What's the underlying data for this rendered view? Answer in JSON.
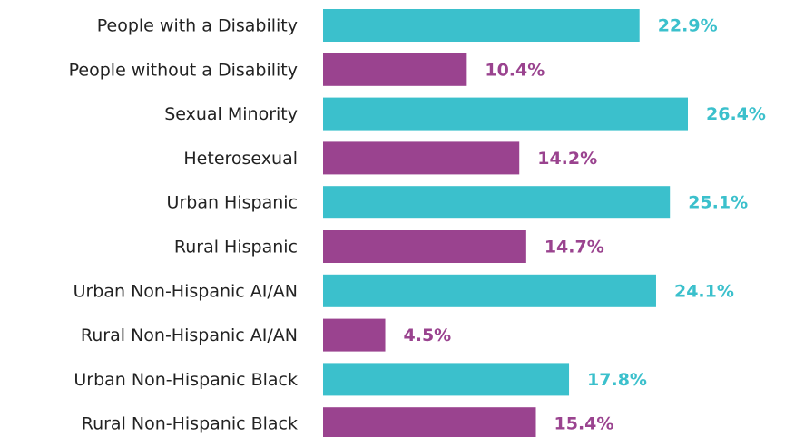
{
  "chart_data": {
    "type": "bar",
    "orientation": "horizontal",
    "categories": [
      "People with a Disability",
      "People without a Disability",
      "Sexual Minority",
      "Heterosexual",
      "Urban Hispanic",
      "Rural Hispanic",
      "Urban Non-Hispanic AI/AN",
      "Rural Non-Hispanic AI/AN",
      "Urban Non-Hispanic Black",
      "Rural Non-Hispanic Black"
    ],
    "values": [
      22.9,
      10.4,
      26.4,
      14.2,
      25.1,
      14.7,
      24.1,
      4.5,
      17.8,
      15.4
    ],
    "value_labels": [
      "22.9%",
      "10.4%",
      "26.4%",
      "14.2%",
      "25.1%",
      "14.7%",
      "24.1%",
      "4.5%",
      "17.8%",
      "15.4%"
    ],
    "colors": [
      "#3bc0cc",
      "#9a438f",
      "#3bc0cc",
      "#9a438f",
      "#3bc0cc",
      "#9a438f",
      "#3bc0cc",
      "#9a438f",
      "#3bc0cc",
      "#9a438f"
    ]
  }
}
